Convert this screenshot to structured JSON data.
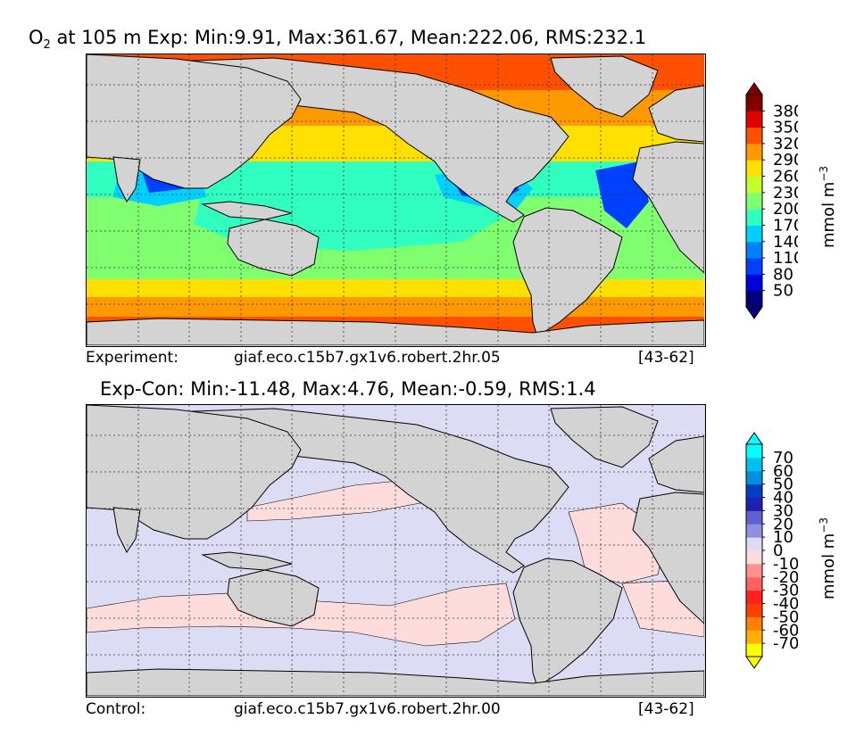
{
  "chart_data": [
    {
      "type": "heatmap",
      "title_base": "O",
      "title_sub": "2",
      "title_rest": " at 105 m Exp: Min:9.91, Max:361.67, Mean:222.06, RMS:232.1",
      "caption_left": "Experiment:",
      "caption_mid": "giaf.eco.c15b7.gx1v6.robert.2hr.05",
      "caption_right": "[43-62]",
      "colorbar": {
        "levels": [
          50,
          80,
          110,
          140,
          170,
          200,
          230,
          260,
          290,
          320,
          350,
          380
        ],
        "tick_labels": [
          "380",
          "350",
          "320",
          "290",
          "260",
          "230",
          "200",
          "170",
          "140",
          "110",
          "80",
          "50"
        ],
        "colors": [
          "#00007f",
          "#0000d9",
          "#0040ff",
          "#0080ff",
          "#00d0ff",
          "#30ffc0",
          "#80ff70",
          "#c0ff30",
          "#ffe000",
          "#ff9900",
          "#ff5000",
          "#e00000",
          "#800000"
        ],
        "extend": "both",
        "label": "mmol m",
        "label_sup": "−3"
      },
      "map_fill": {
        "tropics": "#80ff70",
        "subtropics": "#30ffc0",
        "midlat": "#ffe000",
        "high_north": "#ff5000",
        "southern_band": "#ff9900",
        "southern_ring": "#ff5000",
        "omz_core": "#00007f",
        "omz_mid": "#0040ff",
        "omz_outer": "#00d0ff",
        "land": "#d3d3d3"
      }
    },
    {
      "type": "heatmap",
      "title": "Exp-Con: Min:-11.48, Max:4.76, Mean:-0.59, RMS:1.4",
      "caption_left": "Control:",
      "caption_mid": "giaf.eco.c15b7.gx1v6.robert.2hr.00",
      "caption_right": "[43-62]",
      "colorbar": {
        "tick_labels": [
          "70",
          "60",
          "50",
          "40",
          "30",
          "20",
          "10",
          "0",
          "-10",
          "-20",
          "-30",
          "-40",
          "-50",
          "-60",
          "-70"
        ],
        "colors": [
          "#ffff00",
          "#ffb000",
          "#ff8000",
          "#ff4000",
          "#ff2020",
          "#ff6060",
          "#ff9090",
          "#ffdcdc",
          "#dcdcf4",
          "#9090e0",
          "#6060d0",
          "#2020b0",
          "#0040c0",
          "#0090e0",
          "#00c0f0",
          "#00ffff"
        ],
        "extend": "both",
        "label": "mmol m",
        "label_sup": "−3"
      },
      "map_fill": {
        "negative": "#dcdcf4",
        "positive": "#ffdcdc",
        "land": "#d3d3d3"
      }
    }
  ]
}
